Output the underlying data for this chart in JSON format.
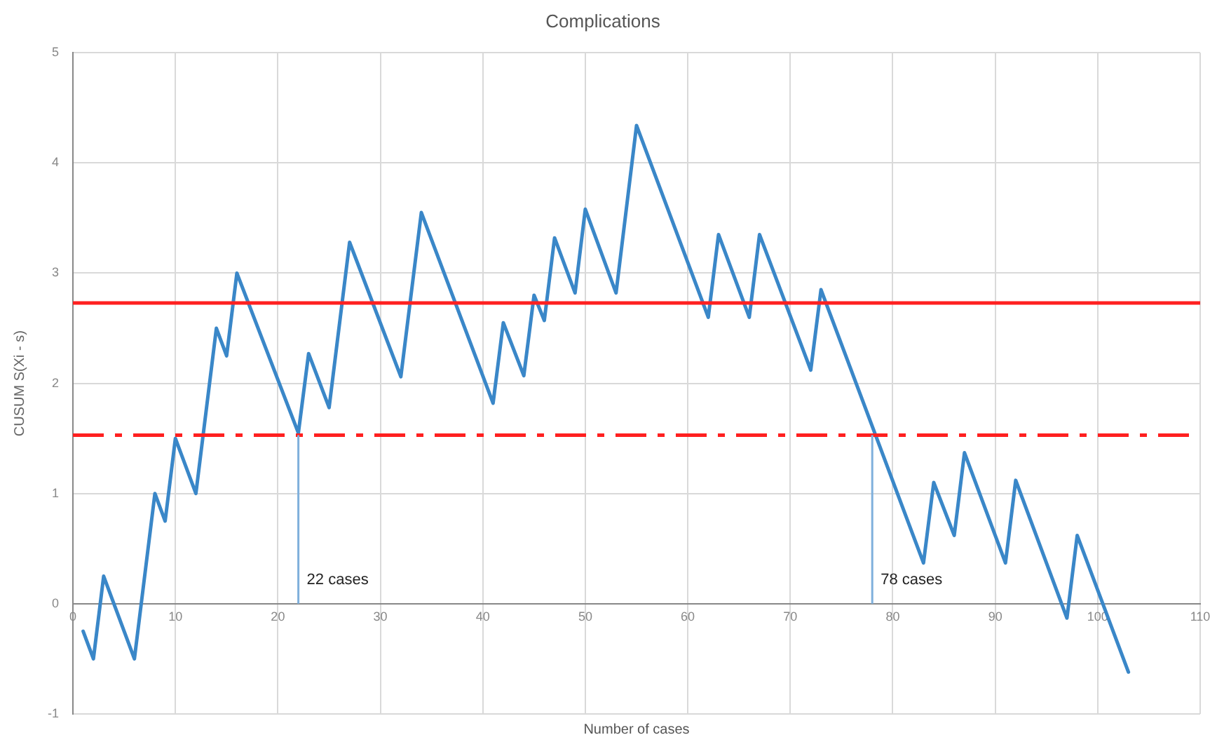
{
  "chart_data": {
    "type": "line",
    "title": "Complications",
    "xlabel": "Number of cases",
    "ylabel": "CUSUM S(Xi - s)",
    "x": [
      1,
      2,
      3,
      6,
      8,
      9,
      10,
      12,
      14,
      15,
      16,
      22,
      23,
      25,
      27,
      32,
      34,
      41,
      42,
      44,
      45,
      46,
      47,
      49,
      50,
      53,
      55,
      62,
      63,
      66,
      67,
      72,
      73,
      83,
      84,
      86,
      87,
      91,
      92,
      97,
      98,
      103
    ],
    "series": [
      {
        "color": "#3a87c8",
        "values": [
          -0.25,
          -0.5,
          0.25,
          -0.5,
          1.0,
          0.75,
          1.5,
          1.0,
          2.5,
          2.25,
          3.0,
          1.55,
          2.27,
          1.78,
          3.28,
          2.06,
          3.55,
          1.82,
          2.55,
          2.07,
          2.8,
          2.57,
          3.32,
          2.82,
          3.58,
          2.82,
          4.34,
          2.6,
          3.35,
          2.6,
          3.35,
          2.12,
          2.85,
          0.37,
          1.1,
          0.62,
          1.37,
          0.37,
          1.12,
          -0.13,
          0.62,
          -0.62
        ]
      }
    ],
    "xlim": [
      0,
      110
    ],
    "xticks": [
      0,
      10,
      20,
      30,
      40,
      50,
      60,
      70,
      80,
      90,
      100,
      110
    ],
    "ylim": [
      -1,
      5
    ],
    "yticks": [
      -1,
      0,
      1,
      2,
      3,
      4,
      5
    ],
    "ref_lines": [
      {
        "axis": "y",
        "value": 2.73,
        "color": "#ff2020",
        "line_style": "solid"
      },
      {
        "axis": "y",
        "value": 1.53,
        "color": "#ff2020",
        "line_style": "dashed"
      },
      {
        "axis": "x",
        "value": 22,
        "label": "22 cases",
        "color": "#7fb0dc"
      },
      {
        "axis": "x",
        "value": 78,
        "label": "78 cases",
        "color": "#7fb0dc"
      }
    ],
    "grid": true,
    "legend": false,
    "marker": "none",
    "line_style": "solid"
  }
}
